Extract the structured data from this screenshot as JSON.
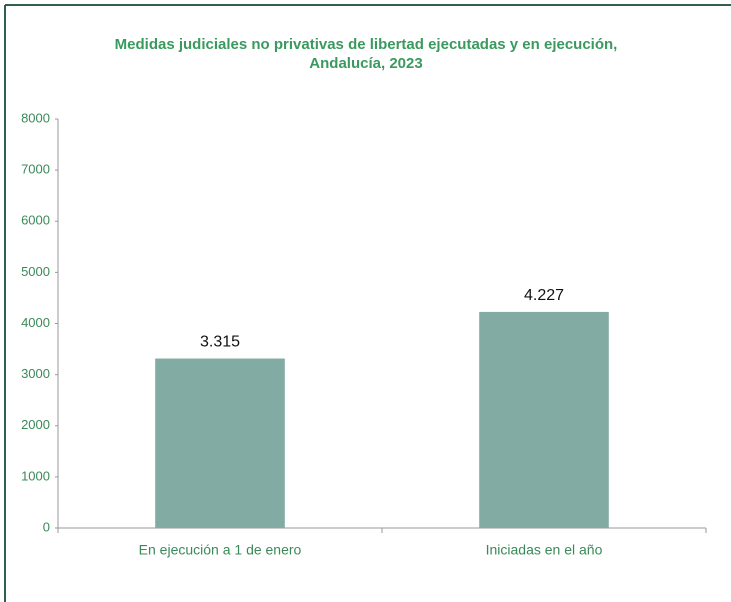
{
  "chart_data": {
    "type": "bar",
    "title": [
      "Medidas judiciales no privativas de libertad ejecutadas y en ejecución,",
      "Andalucía, 2023"
    ],
    "categories": [
      "En ejecución a 1 de enero",
      "Iniciadas en el año"
    ],
    "values": [
      3315,
      4227
    ],
    "value_labels": [
      "3.315",
      "4.227"
    ],
    "color": "#82aba4",
    "ylim": [
      0,
      8000
    ],
    "yticks": [
      0,
      1000,
      2000,
      3000,
      4000,
      5000,
      6000,
      7000,
      8000
    ],
    "grid": false
  }
}
